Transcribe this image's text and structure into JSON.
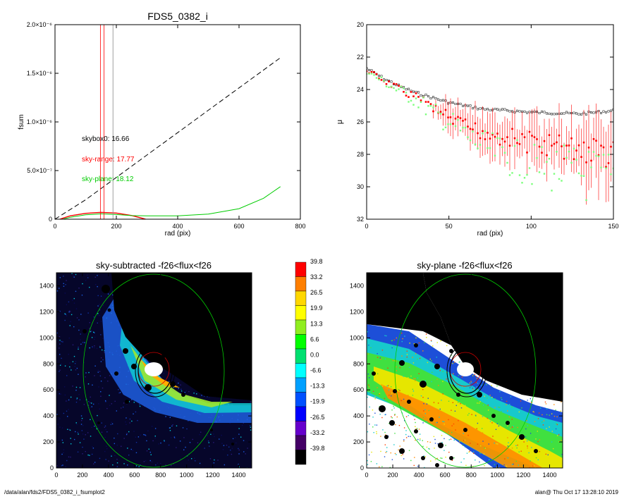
{
  "footer": {
    "path": "/data/alan/fds2/FDS5_0382_i_fsumplot2",
    "stamp": "alan@  Thu Oct 17 13:28:10 2019"
  },
  "colors": {
    "sky-range": "#ff0000",
    "sky-plane": "#00cc00",
    "skybox0": "#000000"
  },
  "chart_data": [
    {
      "type": "line",
      "title": "FDS5_0382_i",
      "xlabel": "rad (pix)",
      "ylabel": "fsum",
      "xlim": [
        0,
        800
      ],
      "ylim": [
        0,
        2e-06
      ],
      "x_ticks": [
        "0",
        "200",
        "400",
        "600",
        "800"
      ],
      "y_ticks": [
        "0",
        "5.0×10⁻⁷",
        "1.0×10⁻⁶",
        "1.5×10⁻⁶",
        "2.0×10⁻⁶"
      ],
      "annotations": [
        {
          "text": "skybox0: 16.66",
          "color": "#000000"
        },
        {
          "text": "sky-range: 17.77",
          "color": "#ff0000"
        },
        {
          "text": "sky-plane: 18.12",
          "color": "#00cc00"
        }
      ],
      "vlines": [
        {
          "x": 148,
          "color": "#ff0000"
        },
        {
          "x": 160,
          "color": "#ff0000"
        },
        {
          "x": 189,
          "color": "#888888"
        }
      ],
      "series": [
        {
          "style": "dashed",
          "color": "#000000",
          "points": [
            [
              0,
              0
            ],
            [
              100,
              2e-07
            ],
            [
              200,
              4.3e-07
            ],
            [
              300,
              6.6e-07
            ],
            [
              400,
              8.9e-07
            ],
            [
              500,
              1.12e-06
            ],
            [
              600,
              1.35e-06
            ],
            [
              735,
              1.66e-06
            ]
          ]
        },
        {
          "style": "solid",
          "color": "#ff0000",
          "points": [
            [
              0,
              -2e-08
            ],
            [
              25,
              1e-08
            ],
            [
              50,
              3.5e-08
            ],
            [
              100,
              6e-08
            ],
            [
              150,
              7e-08
            ],
            [
              200,
              6.3e-08
            ],
            [
              250,
              3.8e-08
            ],
            [
              290,
              5e-09
            ],
            [
              320,
              -2.5e-08
            ]
          ]
        },
        {
          "style": "solid",
          "color": "#00cc00",
          "points": [
            [
              0,
              -2e-08
            ],
            [
              50,
              2e-08
            ],
            [
              100,
              4.5e-08
            ],
            [
              150,
              5.5e-08
            ],
            [
              200,
              4.8e-08
            ],
            [
              250,
              3.7e-08
            ],
            [
              300,
              3.4e-08
            ],
            [
              400,
              3.5e-08
            ],
            [
              500,
              5.2e-08
            ],
            [
              600,
              1.08e-07
            ],
            [
              680,
              2.15e-07
            ],
            [
              735,
              3.35e-07
            ]
          ]
        }
      ]
    },
    {
      "type": "scatter",
      "xlabel": "rad (pix)",
      "ylabel": "μ",
      "xlim": [
        0,
        150
      ],
      "ylim": [
        32,
        20
      ],
      "x_ticks": [
        "0",
        "50",
        "100",
        "150"
      ],
      "y_ticks": [
        "20",
        "22",
        "24",
        "26",
        "28",
        "30",
        "32"
      ],
      "series": [
        {
          "color": "#000000",
          "curve": [
            [
              0,
              22.7
            ],
            [
              10,
              23.3
            ],
            [
              20,
              23.8
            ],
            [
              30,
              24.2
            ],
            [
              50,
              24.8
            ],
            [
              70,
              25.2
            ],
            [
              100,
              25.4
            ],
            [
              130,
              25.5
            ],
            [
              150,
              25.3
            ]
          ]
        },
        {
          "color": "#ff0000",
          "curve": [
            [
              0,
              22.8
            ],
            [
              10,
              23.4
            ],
            [
              20,
              24.0
            ],
            [
              30,
              24.5
            ],
            [
              40,
              25.1
            ],
            [
              50,
              25.8
            ],
            [
              60,
              26.3
            ],
            [
              70,
              26.6
            ],
            [
              80,
              26.8
            ],
            [
              100,
              27.3
            ],
            [
              120,
              27.6
            ],
            [
              150,
              28.0
            ]
          ]
        },
        {
          "color": "#00ff00",
          "curve": [
            [
              0,
              22.9
            ],
            [
              10,
              23.5
            ],
            [
              20,
              24.1
            ],
            [
              30,
              24.6
            ],
            [
              40,
              25.4
            ],
            [
              50,
              26.0
            ],
            [
              60,
              26.8
            ],
            [
              70,
              27.5
            ],
            [
              80,
              27.9
            ],
            [
              100,
              28.7
            ],
            [
              120,
              29.0
            ],
            [
              150,
              29.6
            ]
          ]
        }
      ]
    },
    {
      "type": "heatmap",
      "title": "sky-subtracted -f26<flux<f26",
      "xlim": [
        0,
        1500
      ],
      "ylim": [
        0,
        1500
      ],
      "x_ticks": [
        "0",
        "200",
        "400",
        "600",
        "800",
        "1000",
        "1200",
        "1400"
      ],
      "y_ticks": [
        "0",
        "200",
        "400",
        "600",
        "800",
        "1000",
        "1200",
        "1400"
      ]
    },
    {
      "type": "heatmap",
      "title": "sky-plane -f26<flux<f26",
      "xlim": [
        0,
        1500
      ],
      "ylim": [
        0,
        1500
      ],
      "x_ticks": [
        "0",
        "200",
        "400",
        "600",
        "800",
        "1000",
        "1200",
        "1400"
      ],
      "y_ticks": [
        "0",
        "200",
        "400",
        "600",
        "800",
        "1000",
        "1200",
        "1400"
      ]
    }
  ],
  "colorbar": {
    "labels": [
      "39.8",
      "33.2",
      "26.5",
      "19.9",
      "13.3",
      "6.6",
      "0.0",
      "-6.6",
      "-13.3",
      "-19.9",
      "-26.5",
      "-33.2",
      "-39.8"
    ],
    "colors": [
      "#ff0000",
      "#ff7f00",
      "#ffd700",
      "#ffff00",
      "#90ee20",
      "#00ff00",
      "#00e070",
      "#00ffff",
      "#00a0ff",
      "#0050ff",
      "#0000ff",
      "#6600cc",
      "#440066",
      "#000000"
    ]
  }
}
